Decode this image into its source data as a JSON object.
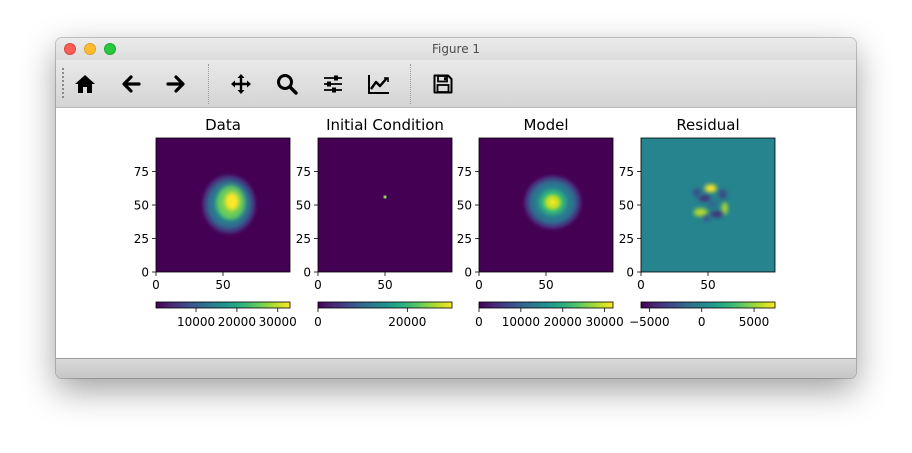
{
  "window": {
    "title": "Figure 1"
  },
  "toolbar": {
    "tools": [
      {
        "name": "home-icon",
        "label": "Home"
      },
      {
        "name": "back-icon",
        "label": "Back"
      },
      {
        "name": "forward-icon",
        "label": "Forward"
      },
      {
        "name": "pan-icon",
        "label": "Pan"
      },
      {
        "name": "zoom-icon",
        "label": "Zoom"
      },
      {
        "name": "configure-subplots-icon",
        "label": "Subplots"
      },
      {
        "name": "edit-axis-icon",
        "label": "Customize"
      },
      {
        "name": "save-icon",
        "label": "Save"
      }
    ]
  },
  "colors": {
    "viridis": [
      "#440154",
      "#482878",
      "#3e4989",
      "#31688e",
      "#26828e",
      "#1f9e89",
      "#35b779",
      "#6ece58",
      "#b5de2b",
      "#fde725"
    ],
    "residual_bg": "#25848e"
  },
  "chart_data": [
    {
      "type": "heatmap",
      "title": "Data",
      "xlim": [
        0,
        100
      ],
      "ylim": [
        0,
        100
      ],
      "xticks": [
        0,
        50
      ],
      "yticks": [
        0,
        25,
        50,
        75
      ],
      "peak": {
        "x": 56,
        "y": 52,
        "value": 32000
      },
      "colorbar": {
        "range": [
          200,
          33000
        ],
        "ticks": [
          10000,
          20000,
          30000
        ],
        "tick_labels": [
          "10000",
          "20000",
          "30000"
        ]
      }
    },
    {
      "type": "heatmap",
      "title": "Initial Condition",
      "xlim": [
        0,
        100
      ],
      "ylim": [
        0,
        100
      ],
      "xticks": [
        0,
        50
      ],
      "yticks": [
        0,
        25,
        50,
        75
      ],
      "peak": {
        "x": 50,
        "y": 56,
        "value": 30000
      },
      "colorbar": {
        "range": [
          0,
          30000
        ],
        "ticks": [
          0,
          20000
        ],
        "tick_labels": [
          "0",
          "20000"
        ]
      }
    },
    {
      "type": "heatmap",
      "title": "Model",
      "xlim": [
        0,
        100
      ],
      "ylim": [
        0,
        100
      ],
      "xticks": [
        0,
        50
      ],
      "yticks": [
        0,
        25,
        50,
        75
      ],
      "peak": {
        "x": 55,
        "y": 52,
        "value": 31000
      },
      "colorbar": {
        "range": [
          0,
          32000
        ],
        "ticks": [
          0,
          10000,
          20000,
          30000
        ],
        "tick_labels": [
          "0",
          "10000",
          "20000",
          "30000"
        ]
      }
    },
    {
      "type": "heatmap",
      "title": "Residual",
      "xlim": [
        0,
        100
      ],
      "ylim": [
        0,
        100
      ],
      "xticks": [
        0,
        50
      ],
      "yticks": [
        0,
        25,
        50,
        75
      ],
      "peak": {
        "x": 52,
        "y": 52,
        "value": 7000
      },
      "colorbar": {
        "range": [
          -5800,
          7000
        ],
        "ticks": [
          -5000,
          0,
          5000
        ],
        "tick_labels": [
          "−5000",
          "0",
          "5000"
        ]
      }
    }
  ]
}
